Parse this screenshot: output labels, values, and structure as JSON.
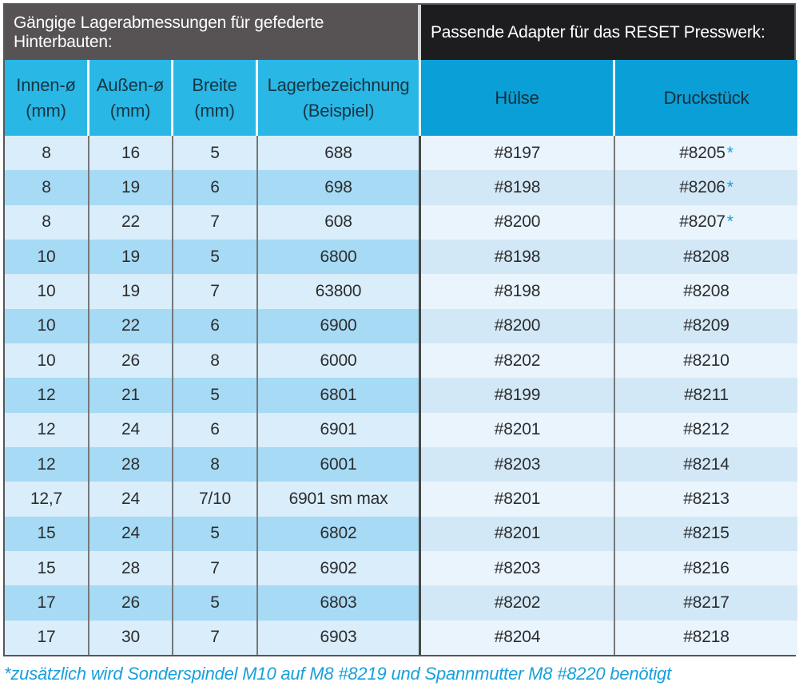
{
  "header": {
    "left_title": "Gängige Lagerabmessungen für gefederte Hinterbauten:",
    "right_title": "Passende Adapter für das RESET Presswerk:"
  },
  "columns": [
    {
      "line1": "Innen-ø",
      "line2": "(mm)"
    },
    {
      "line1": "Außen-ø",
      "line2": "(mm)"
    },
    {
      "line1": "Breite",
      "line2": "(mm)"
    },
    {
      "line1": "Lagerbezeichnung",
      "line2": "(Beispiel)"
    },
    {
      "line1": "Hülse"
    },
    {
      "line1": "Druckstück"
    }
  ],
  "rows": [
    {
      "innen": "8",
      "aussen": "16",
      "breite": "5",
      "lager": "688",
      "huelse": "#8197",
      "druckstueck": "#8205",
      "star": true
    },
    {
      "innen": "8",
      "aussen": "19",
      "breite": "6",
      "lager": "698",
      "huelse": "#8198",
      "druckstueck": "#8206",
      "star": true
    },
    {
      "innen": "8",
      "aussen": "22",
      "breite": "7",
      "lager": "608",
      "huelse": "#8200",
      "druckstueck": "#8207",
      "star": true
    },
    {
      "innen": "10",
      "aussen": "19",
      "breite": "5",
      "lager": "6800",
      "huelse": "#8198",
      "druckstueck": "#8208",
      "star": false
    },
    {
      "innen": "10",
      "aussen": "19",
      "breite": "7",
      "lager": "63800",
      "huelse": "#8198",
      "druckstueck": "#8208",
      "star": false
    },
    {
      "innen": "10",
      "aussen": "22",
      "breite": "6",
      "lager": "6900",
      "huelse": "#8200",
      "druckstueck": "#8209",
      "star": false
    },
    {
      "innen": "10",
      "aussen": "26",
      "breite": "8",
      "lager": "6000",
      "huelse": "#8202",
      "druckstueck": "#8210",
      "star": false
    },
    {
      "innen": "12",
      "aussen": "21",
      "breite": "5",
      "lager": "6801",
      "huelse": "#8199",
      "druckstueck": "#8211",
      "star": false
    },
    {
      "innen": "12",
      "aussen": "24",
      "breite": "6",
      "lager": "6901",
      "huelse": "#8201",
      "druckstueck": "#8212",
      "star": false
    },
    {
      "innen": "12",
      "aussen": "28",
      "breite": "8",
      "lager": "6001",
      "huelse": "#8203",
      "druckstueck": "#8214",
      "star": false
    },
    {
      "innen": "12,7",
      "aussen": "24",
      "breite": "7/10",
      "lager": "6901 sm max",
      "huelse": "#8201",
      "druckstueck": "#8213",
      "star": false
    },
    {
      "innen": "15",
      "aussen": "24",
      "breite": "5",
      "lager": "6802",
      "huelse": "#8201",
      "druckstueck": "#8215",
      "star": false
    },
    {
      "innen": "15",
      "aussen": "28",
      "breite": "7",
      "lager": "6902",
      "huelse": "#8203",
      "druckstueck": "#8216",
      "star": false
    },
    {
      "innen": "17",
      "aussen": "26",
      "breite": "5",
      "lager": "6803",
      "huelse": "#8202",
      "druckstueck": "#8217",
      "star": false
    },
    {
      "innen": "17",
      "aussen": "30",
      "breite": "7",
      "lager": "6903",
      "huelse": "#8204",
      "druckstueck": "#8218",
      "star": false
    }
  ],
  "star_symbol": "*",
  "footnote": "*zusätzlich wird Sonderspindel M10 auf M8 #8219 und Spannmutter M8 #8220 benötigt",
  "colors": {
    "header_left_bg": "#575355",
    "header_right_bg": "#1d1d1f",
    "col_header_left_bg": "#29b7e6",
    "col_header_right_bg": "#0a9fd7",
    "row_light_left": "#d9edfa",
    "row_dark_left": "#a7daf4",
    "row_light_right": "#e9f4fc",
    "row_dark_right": "#d3e8f6",
    "accent": "#189fdc"
  }
}
